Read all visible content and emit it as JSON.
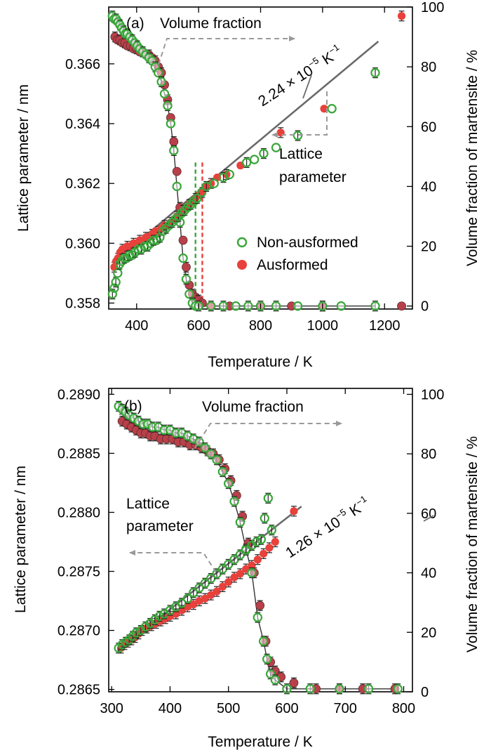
{
  "chart_data": [
    {
      "panel": "(a)",
      "type": "scatter",
      "xlabel": "Temperature / K",
      "ylabel": "Lattice parameter / nm",
      "y2label": "Volume fraction of martensite / %",
      "xlim": [
        310,
        1290
      ],
      "ylim": [
        0.3578,
        0.3679
      ],
      "y2lim": [
        -1,
        100
      ],
      "xticks": [
        400,
        600,
        800,
        1000,
        1200
      ],
      "yticks": [
        0.358,
        0.36,
        0.362,
        0.364,
        0.366
      ],
      "ytick_labels": [
        "0.358",
        "0.360",
        "0.362",
        "0.364",
        "0.366"
      ],
      "y2ticks": [
        0,
        20,
        40,
        60,
        80,
        100
      ],
      "fit_label_prefix": "2.24 × 10",
      "fit_label_exp": "−5",
      "fit_label_unit": " K",
      "fit_label_unit_exp": "−1",
      "annotations": {
        "volume_fraction": "Volume fraction",
        "lattice_line1": "Lattice",
        "lattice_line2": "parameter"
      },
      "legend": [
        {
          "name": "Non-ausformed",
          "marker": "open-circle",
          "color": "#3aa63a"
        },
        {
          "name": "Ausformed",
          "marker": "filled-circle",
          "color": "#e8413c"
        }
      ],
      "legend_position": "center-right",
      "fit_line": {
        "x": [
          370,
          1180
        ],
        "y": [
          0.35975,
          0.36675
        ]
      },
      "series": [
        {
          "name": "Non-ausformed",
          "quantity": "lattice parameter (nm)",
          "x": [
            322,
            328,
            333,
            339,
            345,
            352,
            360,
            368,
            377,
            386,
            395,
            405,
            415,
            425,
            435,
            445,
            455,
            465,
            475,
            485,
            495,
            505,
            515,
            525,
            535,
            545,
            555,
            565,
            575,
            585,
            595,
            610,
            625,
            650,
            680,
            700,
            755,
            780,
            810,
            850,
            920,
            1030,
            1170
          ],
          "y": [
            0.3583,
            0.3585,
            0.3587,
            0.359,
            0.3593,
            0.3594,
            0.3595,
            0.3595,
            0.3596,
            0.3596,
            0.3597,
            0.3598,
            0.3598,
            0.3599,
            0.3599,
            0.36,
            0.3601,
            0.3601,
            0.3602,
            0.3604,
            0.3605,
            0.3606,
            0.3607,
            0.3608,
            0.3609,
            0.361,
            0.3611,
            0.3612,
            0.3613,
            0.3614,
            0.3615,
            0.3617,
            0.3619,
            0.362,
            0.3622,
            0.3623,
            0.3627,
            0.3628,
            0.363,
            0.3632,
            0.3636,
            0.3645,
            0.3657
          ]
        },
        {
          "name": "Ausformed",
          "quantity": "lattice parameter (nm)",
          "x": [
            328,
            334,
            340,
            347,
            354,
            362,
            370,
            380,
            390,
            400,
            410,
            420,
            430,
            440,
            450,
            460,
            470,
            480,
            490,
            500,
            510,
            520,
            530,
            540,
            550,
            560,
            570,
            580,
            590,
            600,
            612,
            625,
            640,
            660,
            690,
            735,
            865,
            1005,
            1255
          ],
          "y": [
            0.3592,
            0.3594,
            0.3595,
            0.3597,
            0.3598,
            0.3598,
            0.3599,
            0.3599,
            0.36,
            0.36,
            0.3601,
            0.3601,
            0.3602,
            0.3602,
            0.3603,
            0.3604,
            0.3604,
            0.3605,
            0.3606,
            0.3606,
            0.3607,
            0.3608,
            0.3609,
            0.361,
            0.3611,
            0.3612,
            0.3613,
            0.3614,
            0.3615,
            0.3616,
            0.3617,
            0.3619,
            0.362,
            0.3622,
            0.3623,
            0.3626,
            0.3637,
            0.3645,
            0.3676
          ]
        },
        {
          "name": "Non-ausformed",
          "quantity": "volume fraction of martensite (%)",
          "x": [
            322,
            328,
            334,
            340,
            346,
            352,
            358,
            364,
            370,
            378,
            386,
            394,
            402,
            410,
            420,
            430,
            440,
            450,
            460,
            470,
            480,
            490,
            500,
            510,
            520,
            530,
            540,
            550,
            560,
            570,
            580,
            590,
            600,
            640,
            680,
            720,
            760,
            800,
            850,
            920,
            1000,
            1060,
            1170
          ],
          "y": [
            97,
            96,
            96,
            95,
            94,
            93,
            92,
            91,
            91,
            90,
            89,
            88,
            87,
            86,
            85,
            84,
            83,
            82,
            80,
            78,
            75,
            71,
            67,
            61,
            52,
            40,
            28,
            16,
            9,
            4,
            1,
            0,
            0,
            0,
            0,
            0,
            0,
            0,
            0,
            0,
            0,
            0,
            0
          ]
        },
        {
          "name": "Ausformed",
          "quantity": "volume fraction of martensite (%)",
          "x": [
            330,
            338,
            346,
            354,
            362,
            370,
            380,
            390,
            400,
            410,
            420,
            430,
            440,
            450,
            460,
            470,
            480,
            490,
            500,
            510,
            520,
            530,
            540,
            550,
            560,
            570,
            580,
            590,
            600,
            612,
            640,
            700,
            800,
            900,
            1000,
            1255
          ],
          "y": [
            90,
            89,
            89,
            88,
            88,
            87,
            87,
            86,
            86,
            85,
            85,
            84,
            84,
            83,
            82,
            80,
            78,
            74,
            69,
            63,
            55,
            45,
            33,
            22,
            13,
            7,
            4,
            3,
            2,
            1,
            0,
            0,
            0,
            0,
            0,
            0
          ]
        }
      ]
    },
    {
      "panel": "(b)",
      "type": "scatter",
      "xlabel": "Temperature / K",
      "ylabel": "Lattice parameter / nm",
      "y2label": "Volume fraction of martensite / %",
      "xlim": [
        295,
        815
      ],
      "ylim": [
        0.28648,
        0.28905
      ],
      "y2lim": [
        0,
        102
      ],
      "xticks": [
        300,
        400,
        500,
        600,
        700,
        800
      ],
      "yticks": [
        0.2865,
        0.287,
        0.2875,
        0.288,
        0.2885,
        0.289
      ],
      "ytick_labels": [
        "0.2865",
        "0.2870",
        "0.2875",
        "0.2880",
        "0.2885",
        "0.2890"
      ],
      "y2ticks": [
        0,
        20,
        40,
        60,
        80,
        100
      ],
      "fit_label_prefix": "1.26 × 10",
      "fit_label_exp": "−5",
      "fit_label_unit": " K",
      "fit_label_unit_exp": "−1",
      "annotations": {
        "volume_fraction": "Volume fraction",
        "lattice_line1": "Lattice",
        "lattice_line2": "parameter"
      },
      "fit_line": {
        "x": [
          310,
          625
        ],
        "y": [
          0.28683,
          0.28805
        ]
      },
      "series": [
        {
          "name": "Non-ausformed",
          "quantity": "lattice parameter (nm)",
          "x": [
            312,
            318,
            324,
            330,
            336,
            342,
            350,
            358,
            366,
            374,
            382,
            390,
            400,
            410,
            420,
            430,
            440,
            450,
            460,
            470,
            480,
            490,
            500,
            510,
            520,
            530,
            540,
            548,
            556,
            562,
            568,
            574
          ],
          "y": [
            0.28685,
            0.28688,
            0.2869,
            0.28692,
            0.28695,
            0.28698,
            0.287,
            0.28703,
            0.28706,
            0.28709,
            0.28712,
            0.28714,
            0.28717,
            0.2872,
            0.28723,
            0.28727,
            0.28732,
            0.28736,
            0.2874,
            0.28744,
            0.28748,
            0.28752,
            0.28756,
            0.2876,
            0.28764,
            0.28768,
            0.28772,
            0.28775,
            0.28777,
            0.28795,
            0.28812,
            0.28785
          ]
        },
        {
          "name": "Ausformed",
          "quantity": "lattice parameter (nm)",
          "x": [
            316,
            322,
            328,
            334,
            340,
            346,
            352,
            360,
            368,
            376,
            384,
            392,
            400,
            410,
            420,
            430,
            440,
            450,
            460,
            470,
            480,
            490,
            500,
            510,
            520,
            530,
            540,
            550,
            560,
            570,
            580,
            612
          ],
          "y": [
            0.28685,
            0.28688,
            0.2869,
            0.28692,
            0.28694,
            0.28697,
            0.287,
            0.28702,
            0.28704,
            0.28706,
            0.28708,
            0.2871,
            0.28712,
            0.28714,
            0.28717,
            0.2872,
            0.28722,
            0.28725,
            0.28727,
            0.2873,
            0.28733,
            0.28737,
            0.28741,
            0.28745,
            0.28748,
            0.28752,
            0.28755,
            0.2876,
            0.28765,
            0.2877,
            0.28775,
            0.28801
          ]
        },
        {
          "name": "Non-ausformed",
          "quantity": "volume fraction of martensite (%)",
          "x": [
            312,
            318,
            324,
            330,
            338,
            346,
            354,
            362,
            370,
            380,
            390,
            400,
            410,
            420,
            430,
            440,
            450,
            460,
            470,
            480,
            490,
            500,
            510,
            520,
            530,
            540,
            550,
            560,
            566,
            572,
            580,
            600,
            640,
            690,
            740,
            790
          ],
          "y": [
            96,
            95,
            94,
            93,
            92,
            91,
            90,
            90,
            89,
            89,
            88,
            88,
            87,
            87,
            86,
            85,
            84,
            82,
            80,
            78,
            74,
            70,
            64,
            57,
            48,
            40,
            25,
            17,
            11,
            6,
            4,
            1,
            1,
            1,
            1,
            1
          ]
        },
        {
          "name": "Ausformed",
          "quantity": "volume fraction of martensite (%)",
          "x": [
            318,
            326,
            334,
            342,
            350,
            358,
            366,
            374,
            384,
            394,
            404,
            414,
            424,
            434,
            444,
            454,
            464,
            474,
            484,
            494,
            504,
            514,
            524,
            534,
            544,
            554,
            564,
            572,
            580,
            590,
            612,
            650,
            690,
            730,
            785
          ],
          "y": [
            91,
            90,
            89,
            88,
            87,
            87,
            86,
            86,
            85,
            85,
            85,
            84,
            84,
            83,
            83,
            82,
            81,
            80,
            78,
            75,
            71,
            66,
            59,
            50,
            40,
            29,
            17,
            10,
            7,
            5,
            3,
            1,
            1,
            1,
            1
          ]
        }
      ]
    }
  ]
}
